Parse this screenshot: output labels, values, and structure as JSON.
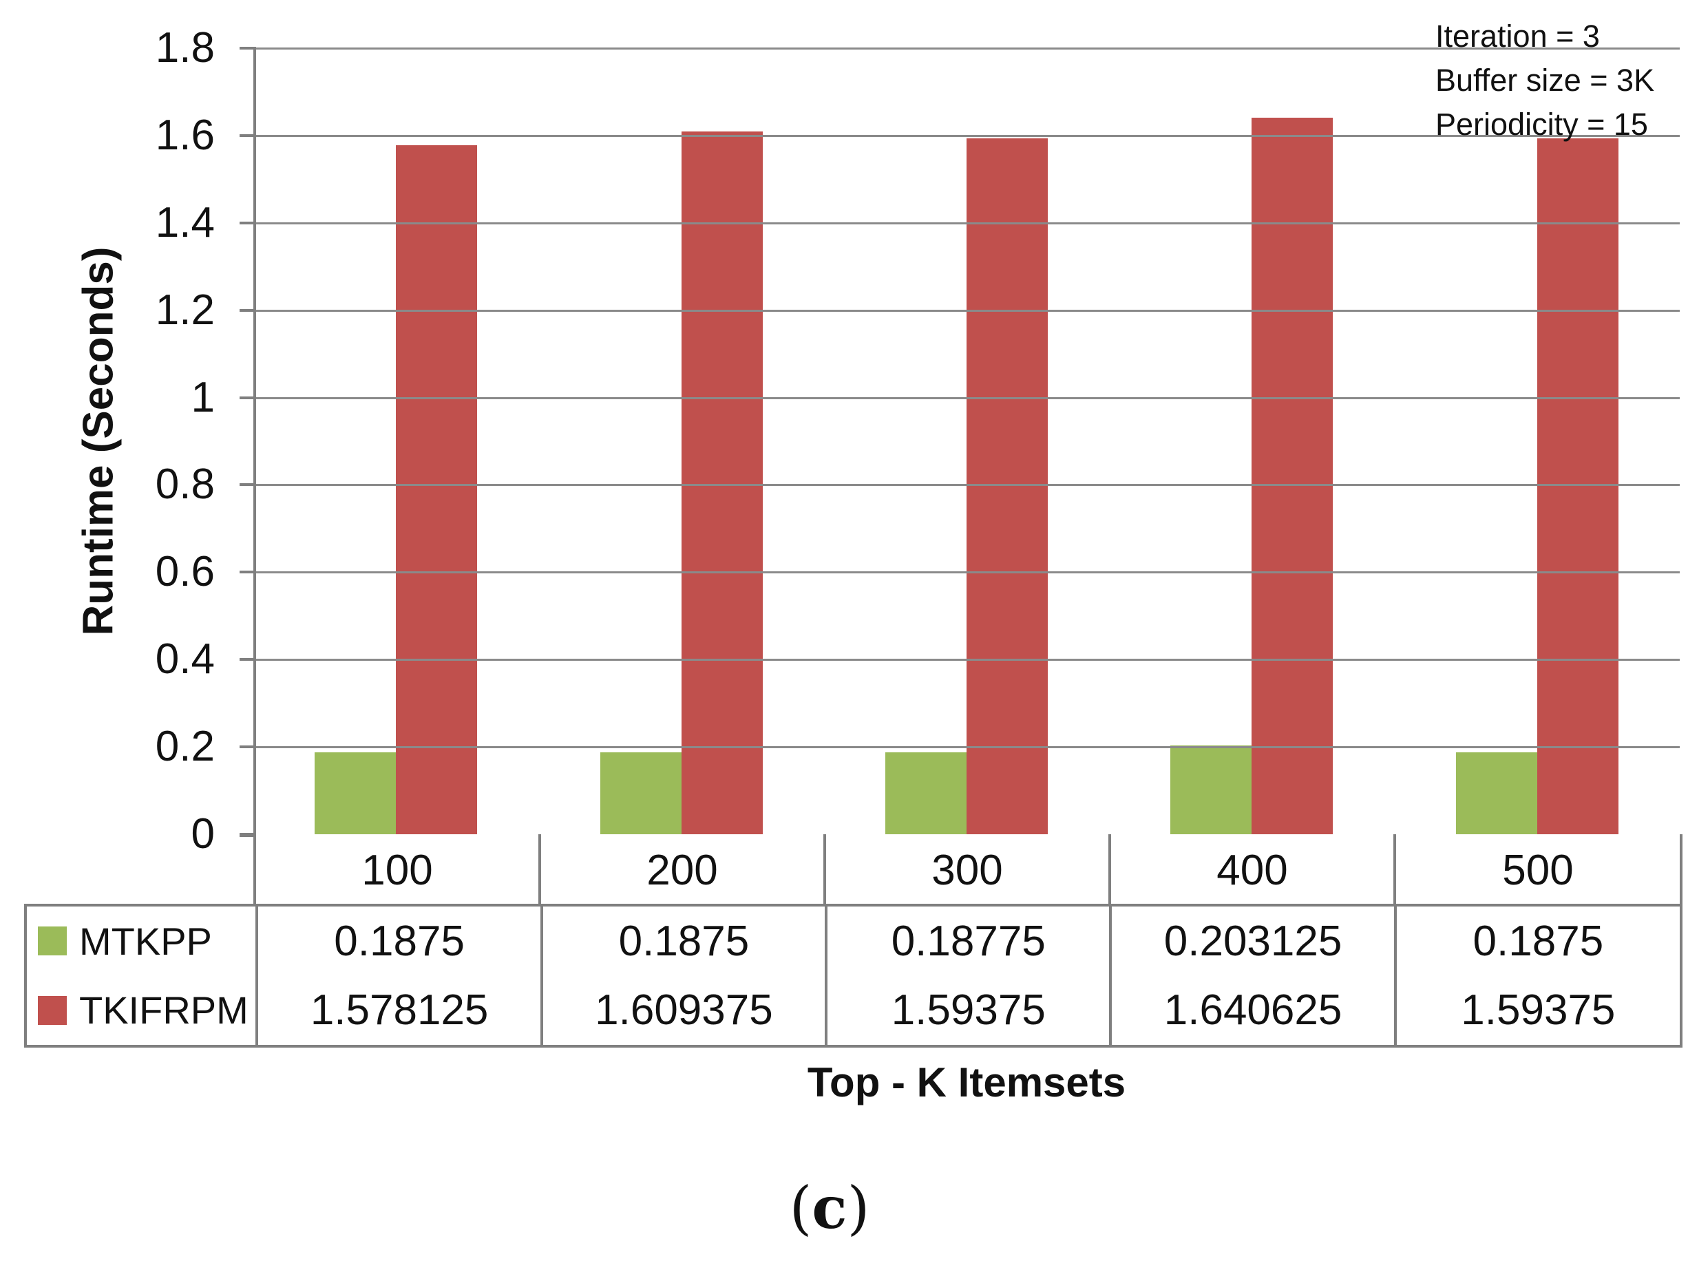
{
  "chart_data": {
    "type": "bar",
    "title": "",
    "xlabel": "Top - K Itemsets",
    "ylabel": "Runtime (Seconds)",
    "categories": [
      "100",
      "200",
      "300",
      "400",
      "500"
    ],
    "series": [
      {
        "name": "MTKPP",
        "color": "#9BBB59",
        "values": [
          0.1875,
          0.1875,
          0.18775,
          0.203125,
          0.1875
        ],
        "value_labels": [
          "0.1875",
          "0.1875",
          "0.18775",
          "0.203125",
          "0.1875"
        ]
      },
      {
        "name": "TKIFRPM",
        "color": "#C0504D",
        "values": [
          1.578125,
          1.609375,
          1.59375,
          1.640625,
          1.59375
        ],
        "value_labels": [
          "1.578125",
          "1.609375",
          "1.59375",
          "1.640625",
          "1.59375"
        ]
      }
    ],
    "ylim": [
      0,
      1.8
    ],
    "ytick_labels": [
      "1.8",
      "1.6",
      "1.4",
      "1.2",
      "1",
      "0.8",
      "0.6",
      "0.4",
      "0.2",
      "0"
    ],
    "ytick_values": [
      1.8,
      1.6,
      1.4,
      1.2,
      1.0,
      0.8,
      0.6,
      0.4,
      0.2,
      0
    ],
    "grid": true,
    "legend_position": "table-left"
  },
  "annotation": {
    "lines": [
      "Iteration = 3",
      "Buffer size = 3K",
      "Periodicity = 15"
    ]
  },
  "caption": {
    "open": "(",
    "letter": "c",
    "close": ")"
  },
  "colors": {
    "series_mtkpp": "#9BBB59",
    "series_tkifrpm": "#C0504D",
    "gridline": "#8a8a8a",
    "axis_border": "#7f7f7f",
    "text": "#111111",
    "background": "#ffffff"
  }
}
